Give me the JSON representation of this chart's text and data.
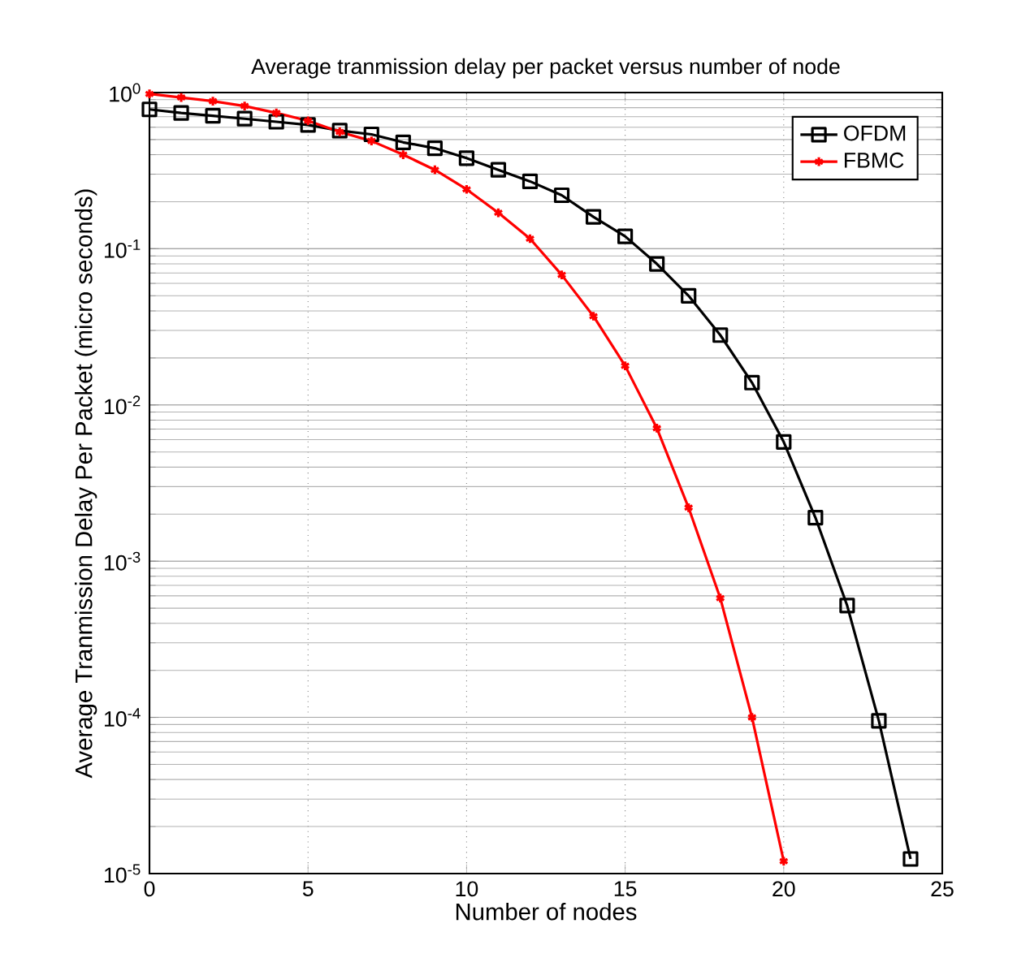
{
  "chart_data": {
    "type": "line",
    "title": "Average tranmission delay per packet versus number of node",
    "xlabel": "Number of nodes",
    "ylabel": "Average Tranmission Delay Per Packet (micro seconds)",
    "x": [
      0,
      1,
      2,
      3,
      4,
      5,
      6,
      7,
      8,
      9,
      10,
      11,
      12,
      13,
      14,
      15,
      16,
      17,
      18,
      19,
      20,
      21,
      22,
      23,
      24
    ],
    "series": [
      {
        "name": "OFDM",
        "color": "#000000",
        "marker": "square",
        "values": [
          0.78,
          0.74,
          0.71,
          0.68,
          0.65,
          0.62,
          0.57,
          0.54,
          0.48,
          0.44,
          0.38,
          0.32,
          0.27,
          0.22,
          0.16,
          0.12,
          0.08,
          0.05,
          0.028,
          0.0139,
          0.0058,
          0.0019,
          0.00052,
          9.5e-05,
          1.24e-05
        ]
      },
      {
        "name": "FBMC",
        "color": "#ff0000",
        "marker": "cross",
        "values": [
          0.98,
          0.93,
          0.88,
          0.82,
          0.74,
          0.66,
          0.56,
          0.49,
          0.4,
          0.32,
          0.24,
          0.17,
          0.116,
          0.068,
          0.037,
          0.0178,
          0.0071,
          0.0022,
          0.00058,
          0.0001,
          1.2e-05,
          null,
          null,
          null,
          null
        ]
      }
    ],
    "xlim": [
      0,
      25
    ],
    "xticks": [
      0,
      5,
      10,
      15,
      20,
      25
    ],
    "ylim": [
      1e-05,
      1
    ],
    "yticks": [
      {
        "value": 1e-05,
        "label": "10$^{-5}$"
      },
      {
        "value": 0.0001,
        "label": "10$^{-4}$"
      },
      {
        "value": 0.001,
        "label": "10$^{-3}$"
      },
      {
        "value": 0.01,
        "label": "10$^{-2}$"
      },
      {
        "value": 0.1,
        "label": "10$^{-1}$"
      },
      {
        "value": 1,
        "label": "10$^{0}$"
      }
    ],
    "log": "y",
    "grid": true,
    "legend": "top right",
    "line_style": "solid"
  }
}
